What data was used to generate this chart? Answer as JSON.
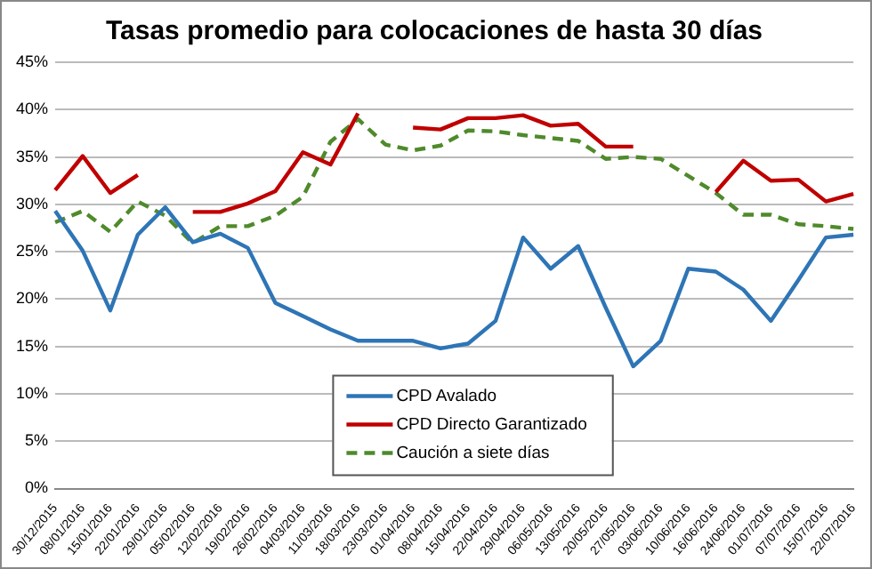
{
  "chart_data": {
    "type": "line",
    "title": "Tasas promedio para colocaciones de hasta 30 días",
    "categories": [
      "30/12/2015",
      "08/01/2016",
      "15/01/2016",
      "22/01/2016",
      "29/01/2016",
      "05/02/2016",
      "12/02/2016",
      "19/02/2016",
      "26/02/2016",
      "04/03/2016",
      "11/03/2016",
      "18/03/2016",
      "23/03/2016",
      "01/04/2016",
      "08/04/2016",
      "15/04/2016",
      "22/04/2016",
      "29/04/2016",
      "06/05/2016",
      "13/05/2016",
      "20/05/2016",
      "27/05/2016",
      "03/06/2016",
      "10/06/2016",
      "16/06/2016",
      "24/06/2016",
      "01/07/2016",
      "07/07/2016",
      "15/07/2016",
      "22/07/2016"
    ],
    "series": [
      {
        "name": "CPD Avalado",
        "color": "#2e75b6",
        "line_style": "solid",
        "values": [
          29.3,
          25.1,
          18.8,
          26.8,
          29.7,
          26.0,
          26.9,
          25.4,
          19.6,
          18.2,
          16.8,
          15.6,
          15.6,
          15.6,
          14.8,
          15.3,
          17.7,
          26.5,
          23.2,
          25.6,
          19.1,
          12.9,
          15.6,
          23.2,
          22.9,
          21.0,
          17.7,
          22.0,
          26.5,
          26.8
        ]
      },
      {
        "name": "CPD Directo Garantizado",
        "color": "#c00000",
        "line_style": "solid",
        "values": [
          31.5,
          35.1,
          31.2,
          33.1,
          null,
          29.2,
          29.2,
          30.1,
          31.4,
          35.5,
          34.2,
          39.6,
          null,
          38.1,
          37.9,
          39.1,
          39.1,
          39.4,
          38.3,
          38.5,
          36.1,
          36.1,
          null,
          null,
          31.3,
          34.6,
          32.5,
          32.6,
          30.3,
          31.1
        ]
      },
      {
        "name": "Caución a siete días",
        "color": "#4f8a2b",
        "line_style": "dashed",
        "values": [
          28.1,
          29.3,
          27.1,
          30.3,
          28.8,
          25.9,
          27.7,
          27.7,
          28.8,
          30.8,
          36.6,
          39.0,
          36.3,
          35.7,
          36.2,
          37.8,
          37.7,
          37.3,
          37.0,
          36.7,
          34.8,
          35.0,
          34.8,
          33.0,
          31.2,
          28.9,
          28.9,
          27.9,
          27.7,
          27.4
        ]
      }
    ],
    "ylim": [
      0,
      45
    ],
    "yticks": [
      {
        "value": 0,
        "label": "0%"
      },
      {
        "value": 5,
        "label": "5%"
      },
      {
        "value": 10,
        "label": "10%"
      },
      {
        "value": 15,
        "label": "15%"
      },
      {
        "value": 20,
        "label": "20%"
      },
      {
        "value": 25,
        "label": "25%"
      },
      {
        "value": 30,
        "label": "30%"
      },
      {
        "value": 35,
        "label": "35%"
      },
      {
        "value": 40,
        "label": "40%"
      },
      {
        "value": 45,
        "label": "45%"
      }
    ],
    "grid": "y",
    "legend": "bottom",
    "marker": "none"
  }
}
